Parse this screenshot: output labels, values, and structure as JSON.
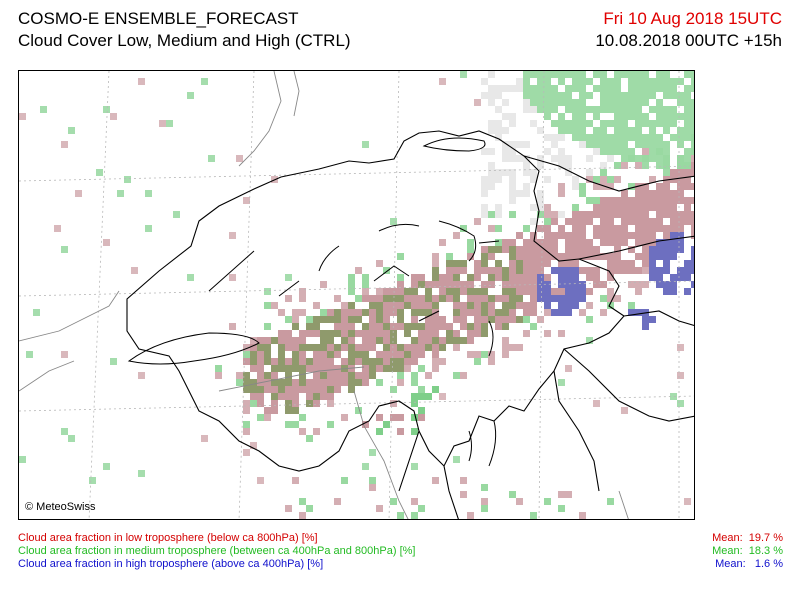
{
  "header": {
    "title": "COSMO-E ENSEMBLE_FORECAST",
    "subtitle": "Cloud Cover Low, Medium and High (CTRL)",
    "valid_time": "Fri 10 Aug 2018 15UTC",
    "run_time": "10.08.2018 00UTC +15h"
  },
  "map": {
    "copyright": "© MeteoSwiss",
    "colors": {
      "low": "#c99aa0",
      "medium": "#7fcf8a",
      "high": "#6d6fc0",
      "low_medium": "#8f9a6c",
      "border": "#000000",
      "grid": "#b0b0b0"
    }
  },
  "legend": {
    "low": {
      "label": "Cloud area fraction in low troposphere (below ca 800hPa) [%]",
      "mean": "Mean:  19.7 %"
    },
    "medium": {
      "label": "Cloud area fraction in medium troposphere (between ca 400hPa and 800hPa) [%]",
      "mean": "Mean:  18.3 %"
    },
    "high": {
      "label": "Cloud area fraction in high troposphere (above ca 400hPa) [%]",
      "mean": "Mean:   1.6 %"
    }
  }
}
